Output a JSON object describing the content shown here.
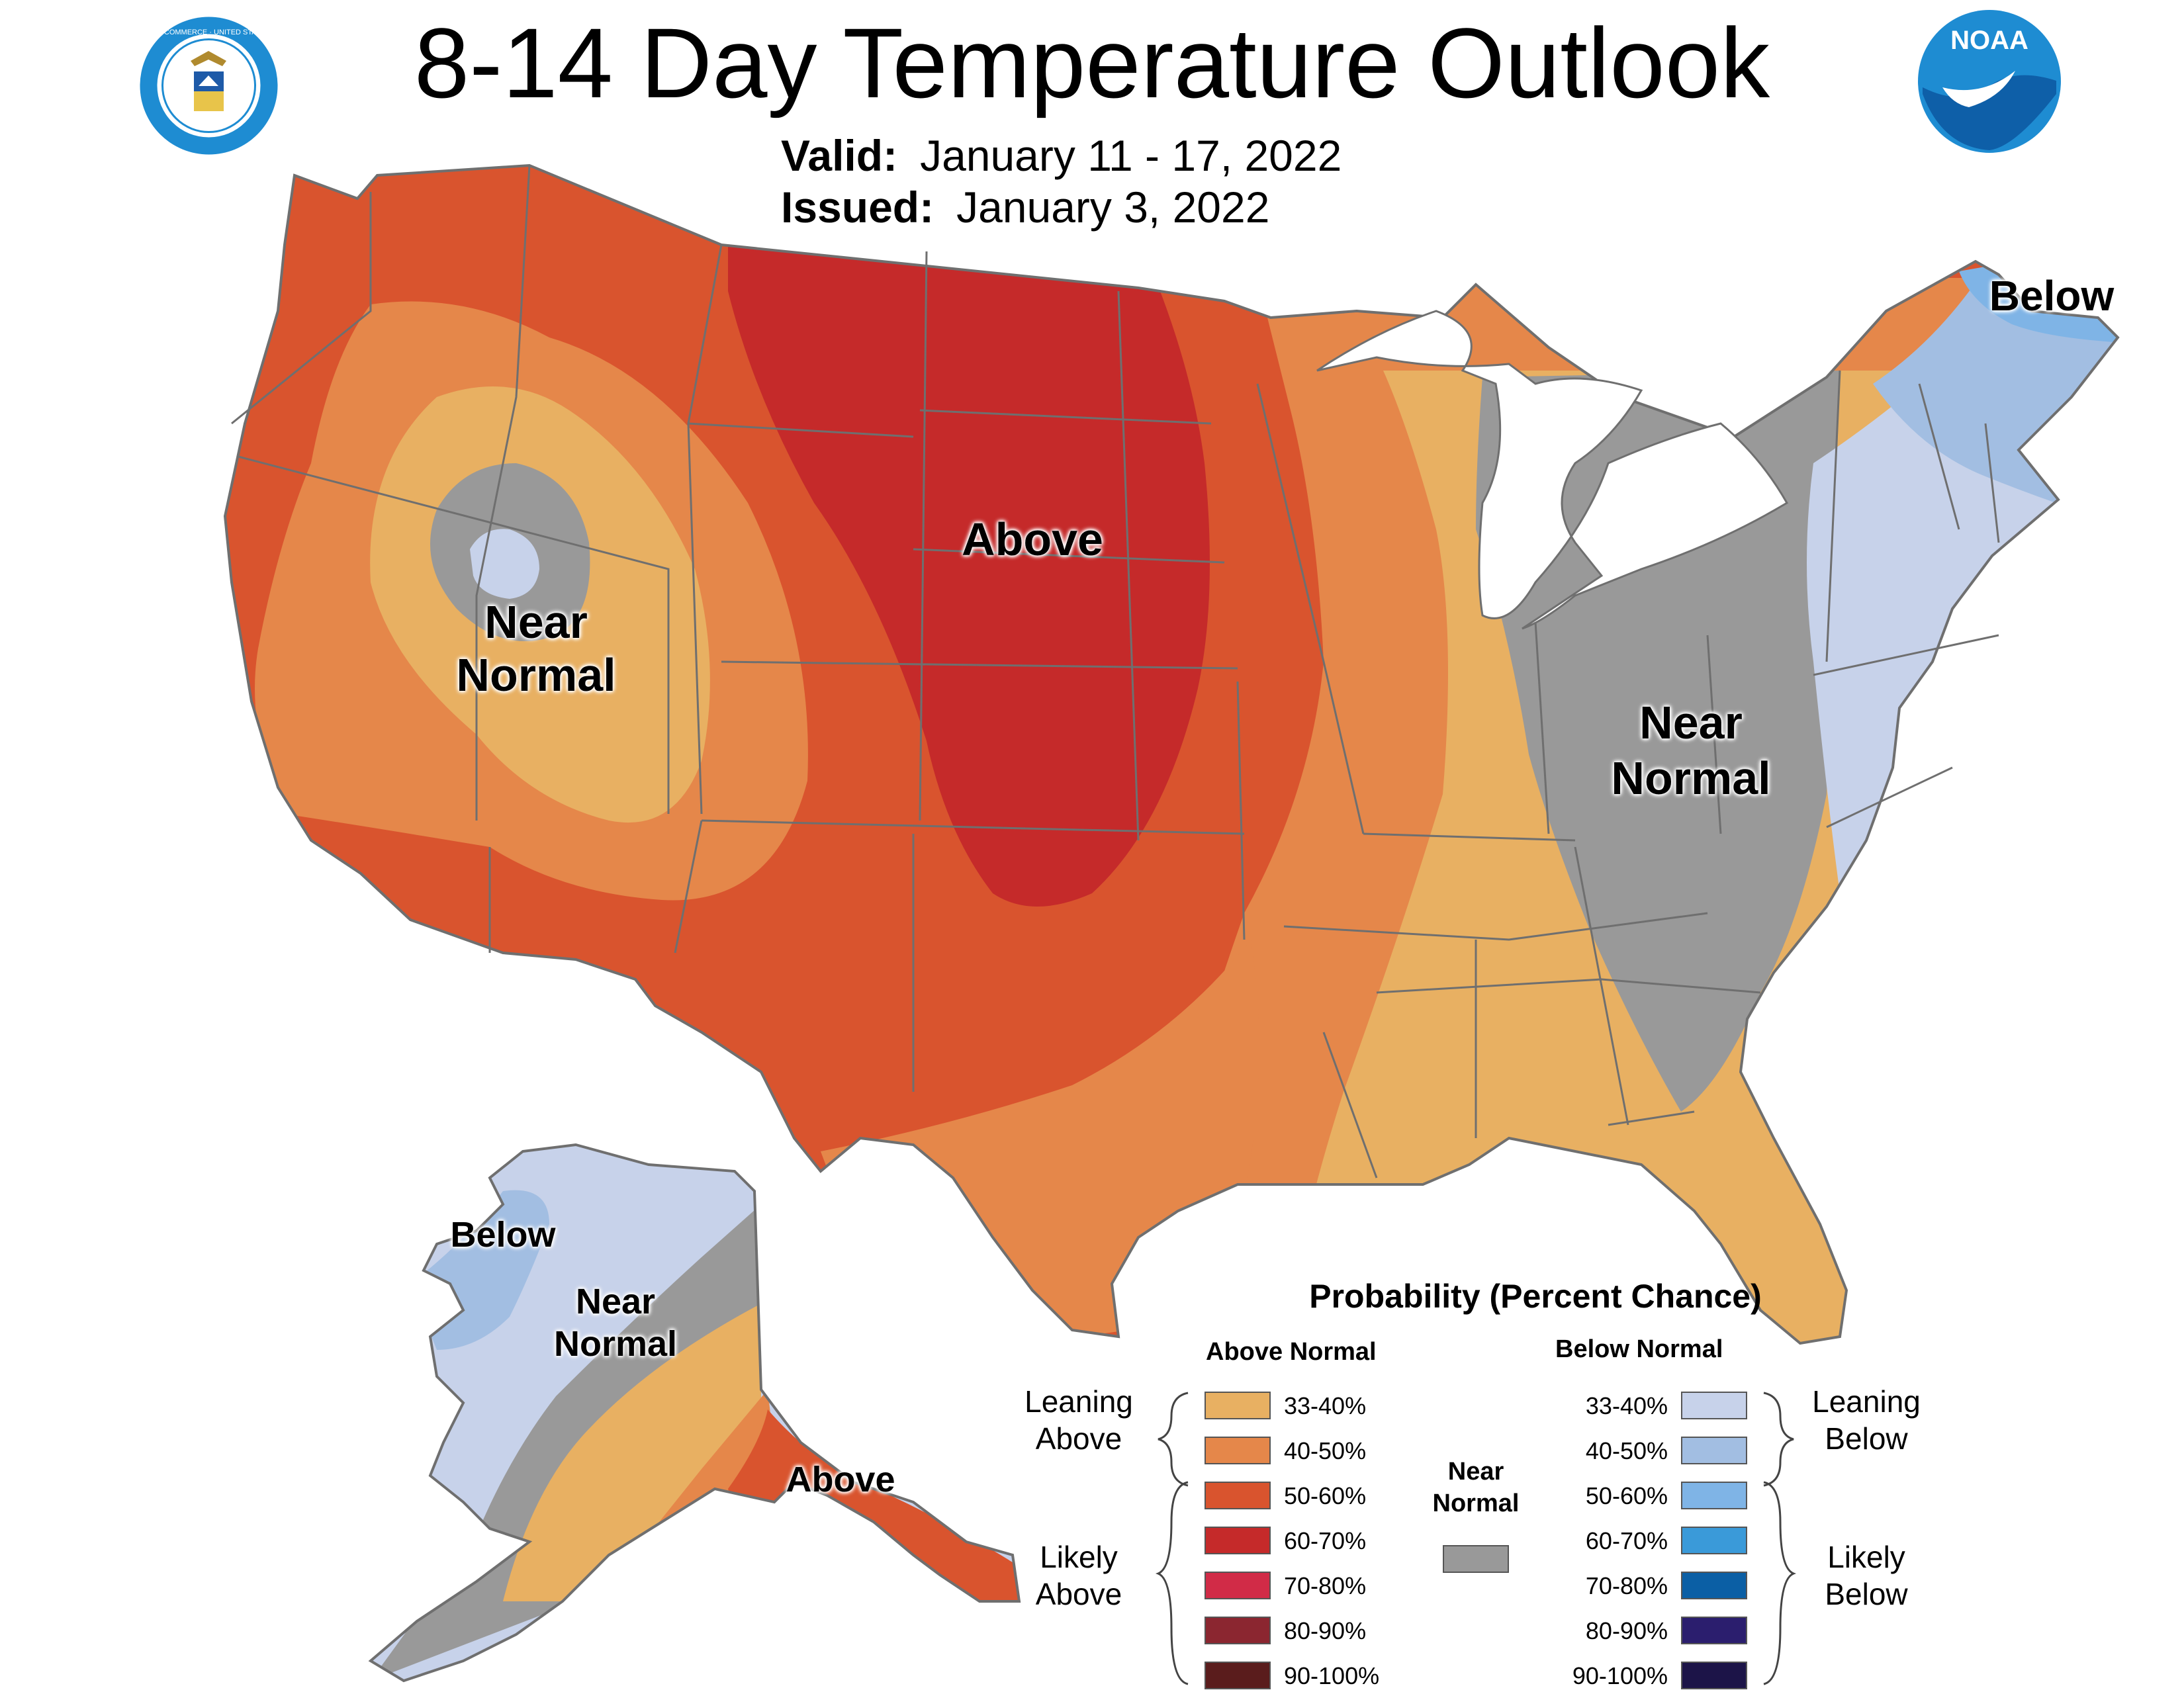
{
  "header": {
    "title": "8-14 Day Temperature Outlook",
    "valid_label": "Valid:",
    "valid_value": "January 11 - 17, 2022",
    "issued_label": "Issued:",
    "issued_value": "January 3, 2022"
  },
  "logos": {
    "commerce_seal_text": "DEPARTMENT OF COMMERCE · UNITED STATES OF AMERICA",
    "noaa_text": "NOAA"
  },
  "colors": {
    "lean_above": "#E8B062",
    "above_40_50": "#E5874A",
    "above_50_60": "#D9542E",
    "above_60_70": "#C52A2A",
    "above_70_80": "#D12B47",
    "above_80_90": "#8B2630",
    "above_90_100": "#5A1C1C",
    "near_normal": "#999999",
    "below_33_40": "#C7D2EA",
    "below_40_50": "#A2BEE2",
    "below_50_60": "#7FB4E6",
    "below_60_70": "#3A9AD9",
    "below_70_80": "#0B5FA5",
    "below_80_90": "#2B1E6E",
    "below_90_100": "#1C1448",
    "state_border": "#6F6F6F",
    "contour": "#707A8A"
  },
  "map_labels": {
    "conus_above": "Above",
    "conus_west_near_normal": "Near\nNormal",
    "conus_east_near_normal": "Near\nNormal",
    "conus_below": "Below",
    "alaska_below": "Below",
    "alaska_near_normal": "Near\nNormal",
    "alaska_above": "Above"
  },
  "legend": {
    "title": "Probability (Percent Chance)",
    "above_header": "Above Normal",
    "below_header": "Below Normal",
    "near_normal_label": "Near\nNormal",
    "leaning_above": "Leaning\nAbove",
    "likely_above": "Likely\nAbove",
    "leaning_below": "Leaning\nBelow",
    "likely_below": "Likely\nBelow",
    "above_bins": [
      "33-40%",
      "40-50%",
      "50-60%",
      "60-70%",
      "70-80%",
      "80-90%",
      "90-100%"
    ],
    "below_bins": [
      "33-40%",
      "40-50%",
      "50-60%",
      "60-70%",
      "70-80%",
      "80-90%",
      "90-100%"
    ]
  }
}
